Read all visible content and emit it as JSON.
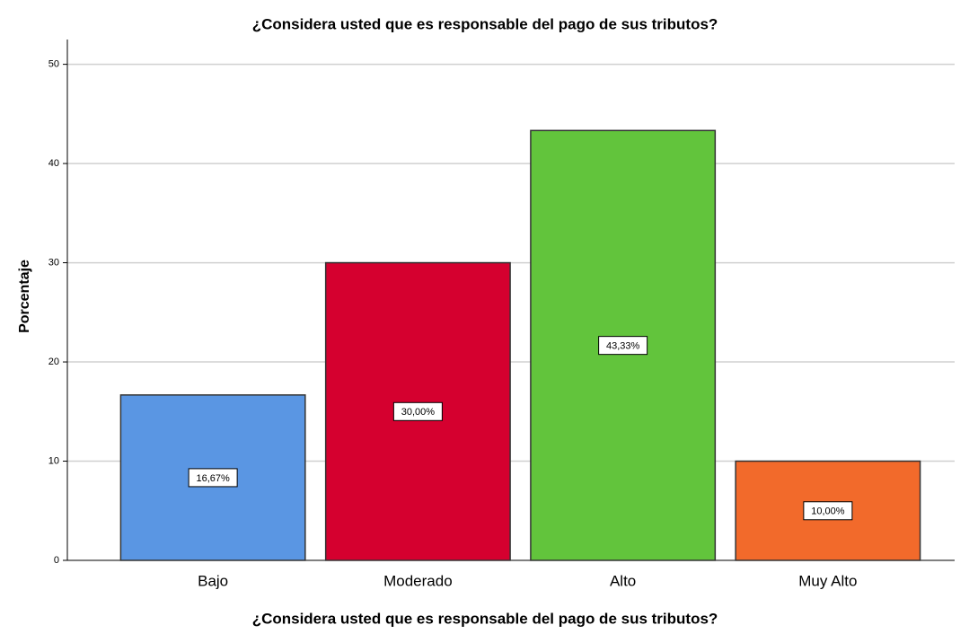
{
  "chart_data": {
    "type": "bar",
    "title": "¿Considera usted que es responsable del pago de sus tributos?",
    "x_label": "¿Considera usted que es responsable del pago de sus tributos?",
    "y_label": "Porcentaje",
    "categories": [
      "Bajo",
      "Moderado",
      "Alto",
      "Muy Alto"
    ],
    "values": [
      16.67,
      30.0,
      43.33,
      10.0
    ],
    "value_labels": [
      "16,67%",
      "30,00%",
      "43,33%",
      "10,00%"
    ],
    "colors": [
      "#5a96e3",
      "#d5002f",
      "#62c43c",
      "#f26a2b"
    ],
    "ylim": [
      0,
      52.5
    ],
    "yticks": [
      0,
      10,
      20,
      30,
      40,
      50
    ],
    "grid": true
  }
}
